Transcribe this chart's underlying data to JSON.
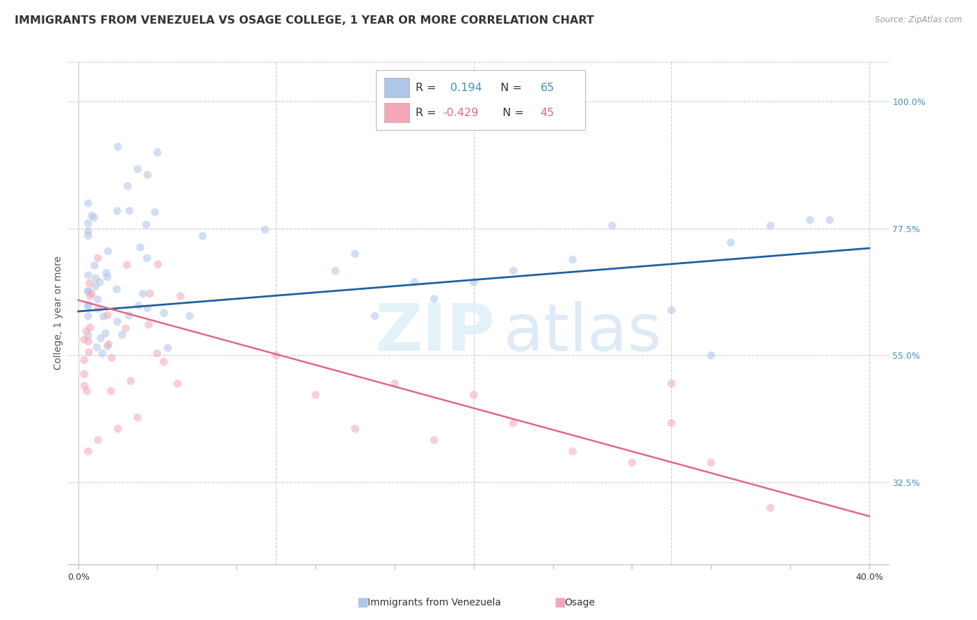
{
  "title": "IMMIGRANTS FROM VENEZUELA VS OSAGE COLLEGE, 1 YEAR OR MORE CORRELATION CHART",
  "source": "Source: ZipAtlas.com",
  "ylabel": "College, 1 year or more",
  "x_tick_labels": [
    "0.0%",
    "",
    "",
    "",
    "",
    "",
    "",
    "",
    "",
    "",
    "40.0%"
  ],
  "y_tick_labels_right": [
    "100.0%",
    "77.5%",
    "55.0%",
    "32.5%"
  ],
  "y_ticks_right": [
    1.0,
    0.775,
    0.55,
    0.325
  ],
  "xlim": [
    -0.005,
    0.41
  ],
  "ylim": [
    0.18,
    1.07
  ],
  "legend_entries": [
    {
      "label": "Immigrants from Venezuela",
      "R": "0.194",
      "N": "65",
      "color": "#aec6e8"
    },
    {
      "label": "Osage",
      "R": "-0.429",
      "N": "45",
      "color": "#f4a7b9"
    }
  ],
  "blue_line_x": [
    0.0,
    0.4
  ],
  "blue_line_y": [
    0.628,
    0.74
  ],
  "pink_line_x": [
    0.0,
    0.4
  ],
  "pink_line_y": [
    0.648,
    0.265
  ],
  "scatter_size": 70,
  "scatter_alpha": 0.55,
  "blue_color": "#aec6e8",
  "pink_color": "#f4a7b9",
  "blue_line_color": "#2060a0",
  "pink_line_color": "#e06880",
  "grid_color": "#cccccc",
  "watermark_zip": "ZIP",
  "watermark_atlas": "atlas",
  "background_color": "#ffffff",
  "title_fontsize": 11.5,
  "axis_label_fontsize": 10,
  "tick_fontsize": 9,
  "right_tick_color": "#4090c0"
}
